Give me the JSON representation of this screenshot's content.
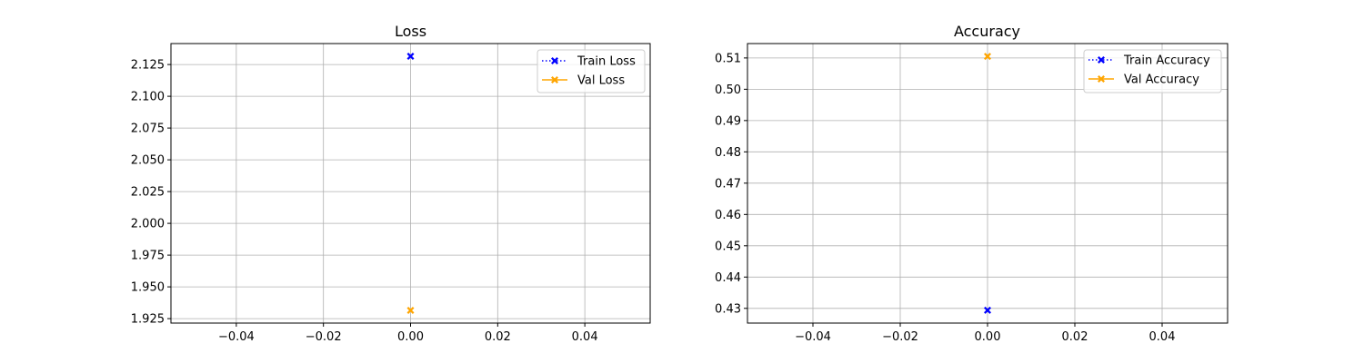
{
  "chart_data": [
    {
      "type": "line",
      "title": "Loss",
      "xlabel": "",
      "ylabel": "",
      "xlim": [
        -0.055,
        0.055
      ],
      "ylim": [
        1.9215,
        2.1415
      ],
      "xticks": [
        -0.04,
        -0.02,
        0.0,
        0.02,
        0.04
      ],
      "xtick_labels": [
        "−0.04",
        "−0.02",
        "0.00",
        "0.02",
        "0.04"
      ],
      "yticks": [
        1.925,
        1.95,
        1.975,
        2.0,
        2.025,
        2.05,
        2.075,
        2.1,
        2.125
      ],
      "ytick_labels": [
        "1.925",
        "1.950",
        "1.975",
        "2.000",
        "2.025",
        "2.050",
        "2.075",
        "2.100",
        "2.125"
      ],
      "grid": true,
      "legend_position": "top-right",
      "series": [
        {
          "name": "Train Loss",
          "color": "#0000ff",
          "linestyle": "dotted",
          "marker": "x-filled",
          "x": [
            0
          ],
          "y": [
            2.1315
          ]
        },
        {
          "name": "Val Loss",
          "color": "#ffa500",
          "linestyle": "solid",
          "marker": "x-filled",
          "x": [
            0
          ],
          "y": [
            1.9315
          ]
        }
      ]
    },
    {
      "type": "line",
      "title": "Accuracy",
      "xlabel": "",
      "ylabel": "",
      "xlim": [
        -0.055,
        0.055
      ],
      "ylim": [
        0.4253,
        0.5146
      ],
      "xticks": [
        -0.04,
        -0.02,
        0.0,
        0.02,
        0.04
      ],
      "xtick_labels": [
        "−0.04",
        "−0.02",
        "0.00",
        "0.02",
        "0.04"
      ],
      "yticks": [
        0.43,
        0.44,
        0.45,
        0.46,
        0.47,
        0.48,
        0.49,
        0.5,
        0.51
      ],
      "ytick_labels": [
        "0.43",
        "0.44",
        "0.45",
        "0.46",
        "0.47",
        "0.48",
        "0.49",
        "0.50",
        "0.51"
      ],
      "grid": true,
      "legend_position": "top-right",
      "series": [
        {
          "name": "Train Accuracy",
          "color": "#0000ff",
          "linestyle": "dotted",
          "marker": "x-filled",
          "x": [
            0
          ],
          "y": [
            0.4294
          ]
        },
        {
          "name": "Val Accuracy",
          "color": "#ffa500",
          "linestyle": "solid",
          "marker": "x-filled",
          "x": [
            0
          ],
          "y": [
            0.5105
          ]
        }
      ]
    }
  ]
}
